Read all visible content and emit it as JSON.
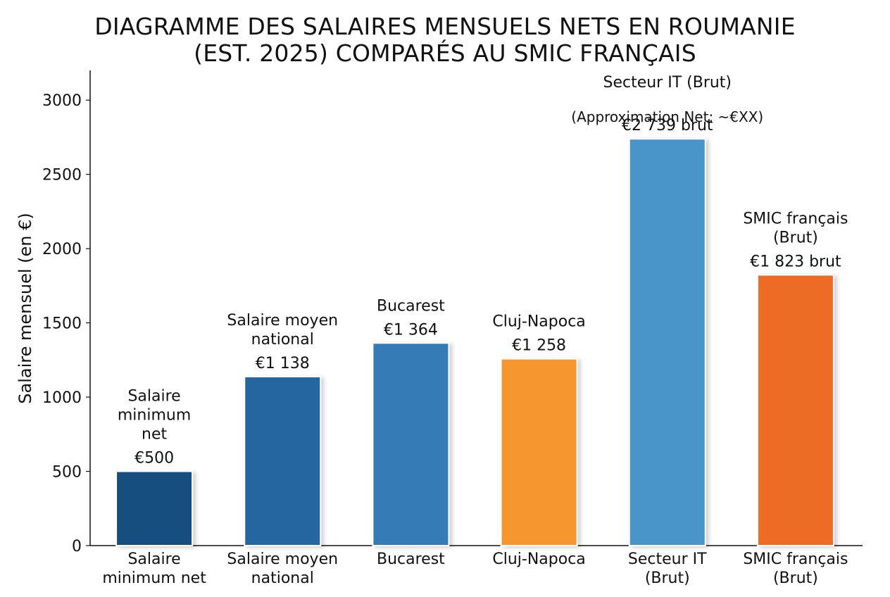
{
  "chart_data": {
    "type": "bar",
    "title_lines": [
      "DIAGRAMME DES SALAIRES MENSUELS NETS EN ROUMANIE",
      "(EST. 2025) COMPARÉS AU SMIC FRANÇAIS"
    ],
    "ylabel": "Salaire mensuel (en €)",
    "xlabel": "",
    "ylim": [
      0,
      3200
    ],
    "yticks": [
      0,
      500,
      1000,
      1500,
      2000,
      2500,
      3000
    ],
    "grid": false,
    "bars": [
      {
        "category_lines": [
          "Salaire",
          "minimum net"
        ],
        "value": 500,
        "color": "#16507f",
        "label_lines": [
          "Salaire",
          "minimum",
          "net"
        ],
        "value_label": "€500"
      },
      {
        "category_lines": [
          "Salaire moyen",
          "national"
        ],
        "value": 1138,
        "color": "#2566a0",
        "label_lines": [
          "Salaire moyen",
          "national"
        ],
        "value_label": "€1 138"
      },
      {
        "category_lines": [
          "Bucarest"
        ],
        "value": 1364,
        "color": "#357cb6",
        "label_lines": [
          "Bucarest"
        ],
        "value_label": "€1 364"
      },
      {
        "category_lines": [
          "Cluj-Napoca"
        ],
        "value": 1258,
        "color": "#f5962f",
        "label_lines": [
          "Cluj-Napoca"
        ],
        "value_label": "€1 258"
      },
      {
        "category_lines": [
          "Secteur IT",
          "(Brut)"
        ],
        "value": 2739,
        "color": "#4a94c8",
        "label_lines": [
          "Secteur IT (Brut)",
          "(Approximation Net: ~€XX)"
        ],
        "value_label": "€2 739 brut"
      },
      {
        "category_lines": [
          "SMIC français",
          "(Brut)"
        ],
        "value": 1823,
        "color": "#ec6c28",
        "label_lines": [
          "SMIC français",
          "(Brut)"
        ],
        "value_label": "€1 823 brut"
      }
    ]
  }
}
